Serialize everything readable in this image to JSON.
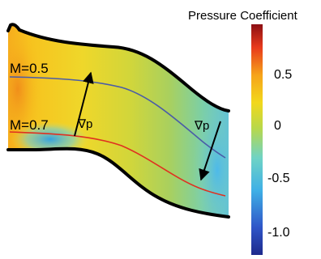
{
  "colorbar": {
    "title": "Pressure Coefficient",
    "ticks": [
      "0.5",
      "0",
      "-0.5",
      "-1.0"
    ]
  },
  "streamlines": [
    {
      "label": "M=0.5",
      "color": "#4a5ca8"
    },
    {
      "label": "M=0.7",
      "color": "#e03020"
    }
  ],
  "gradient_labels": [
    "∇p",
    "∇p"
  ]
}
